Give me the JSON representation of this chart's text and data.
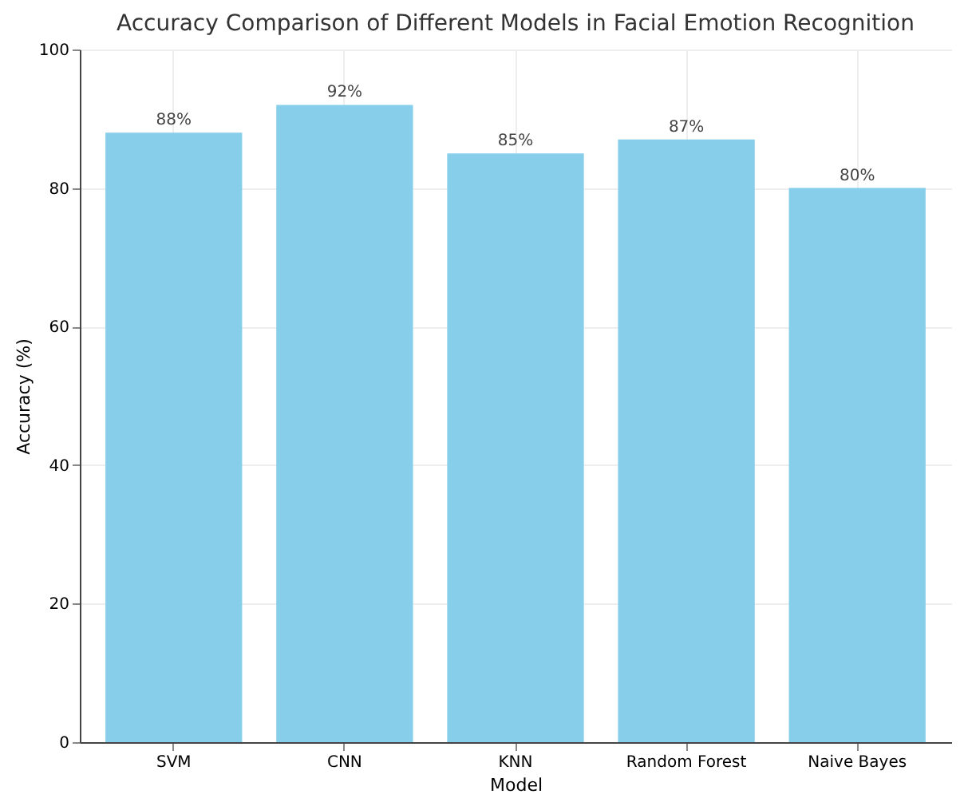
{
  "chart_data": {
    "type": "bar",
    "title": "Accuracy Comparison of Different Models in Facial Emotion Recognition",
    "xlabel": "Model",
    "ylabel": "Accuracy (%)",
    "categories": [
      "SVM",
      "CNN",
      "KNN",
      "Random Forest",
      "Naive Bayes"
    ],
    "values": [
      88,
      92,
      85,
      87,
      80
    ],
    "value_labels": [
      "88%",
      "92%",
      "85%",
      "87%",
      "80%"
    ],
    "color": "#87ceeb",
    "ylim": [
      0,
      100
    ],
    "yticks": [
      0,
      20,
      40,
      60,
      80,
      100
    ],
    "grid": true
  }
}
